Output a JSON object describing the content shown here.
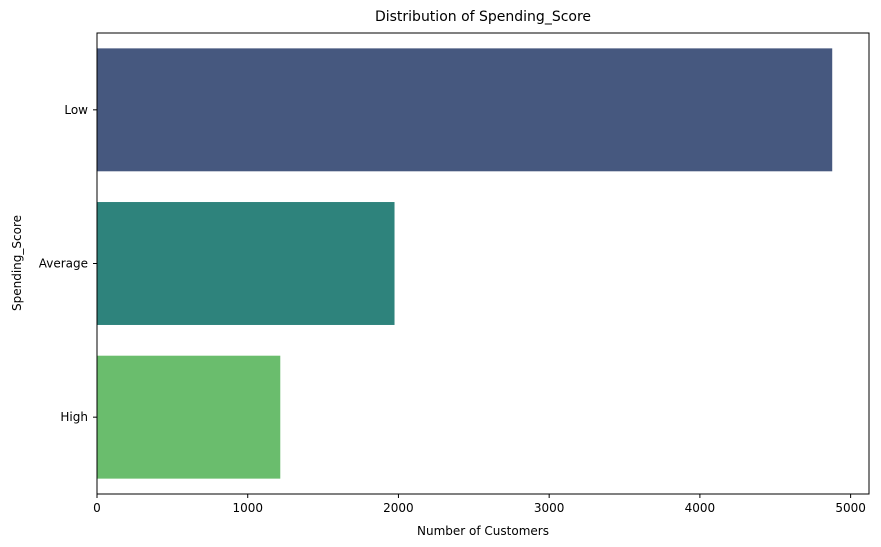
{
  "chart_data": {
    "type": "bar",
    "orientation": "horizontal",
    "title": "Distribution of Spending_Score",
    "xlabel": "Number of Customers",
    "ylabel": "Spending_Score",
    "categories": [
      "Low",
      "Average",
      "High"
    ],
    "values": [
      4878,
      1974,
      1216
    ],
    "colors": [
      "#46587f",
      "#2e837c",
      "#6abd6d"
    ],
    "xlim": [
      0,
      5122
    ],
    "xticks": [
      0,
      1000,
      2000,
      3000,
      4000,
      5000
    ],
    "grid": false,
    "legend": "none"
  }
}
